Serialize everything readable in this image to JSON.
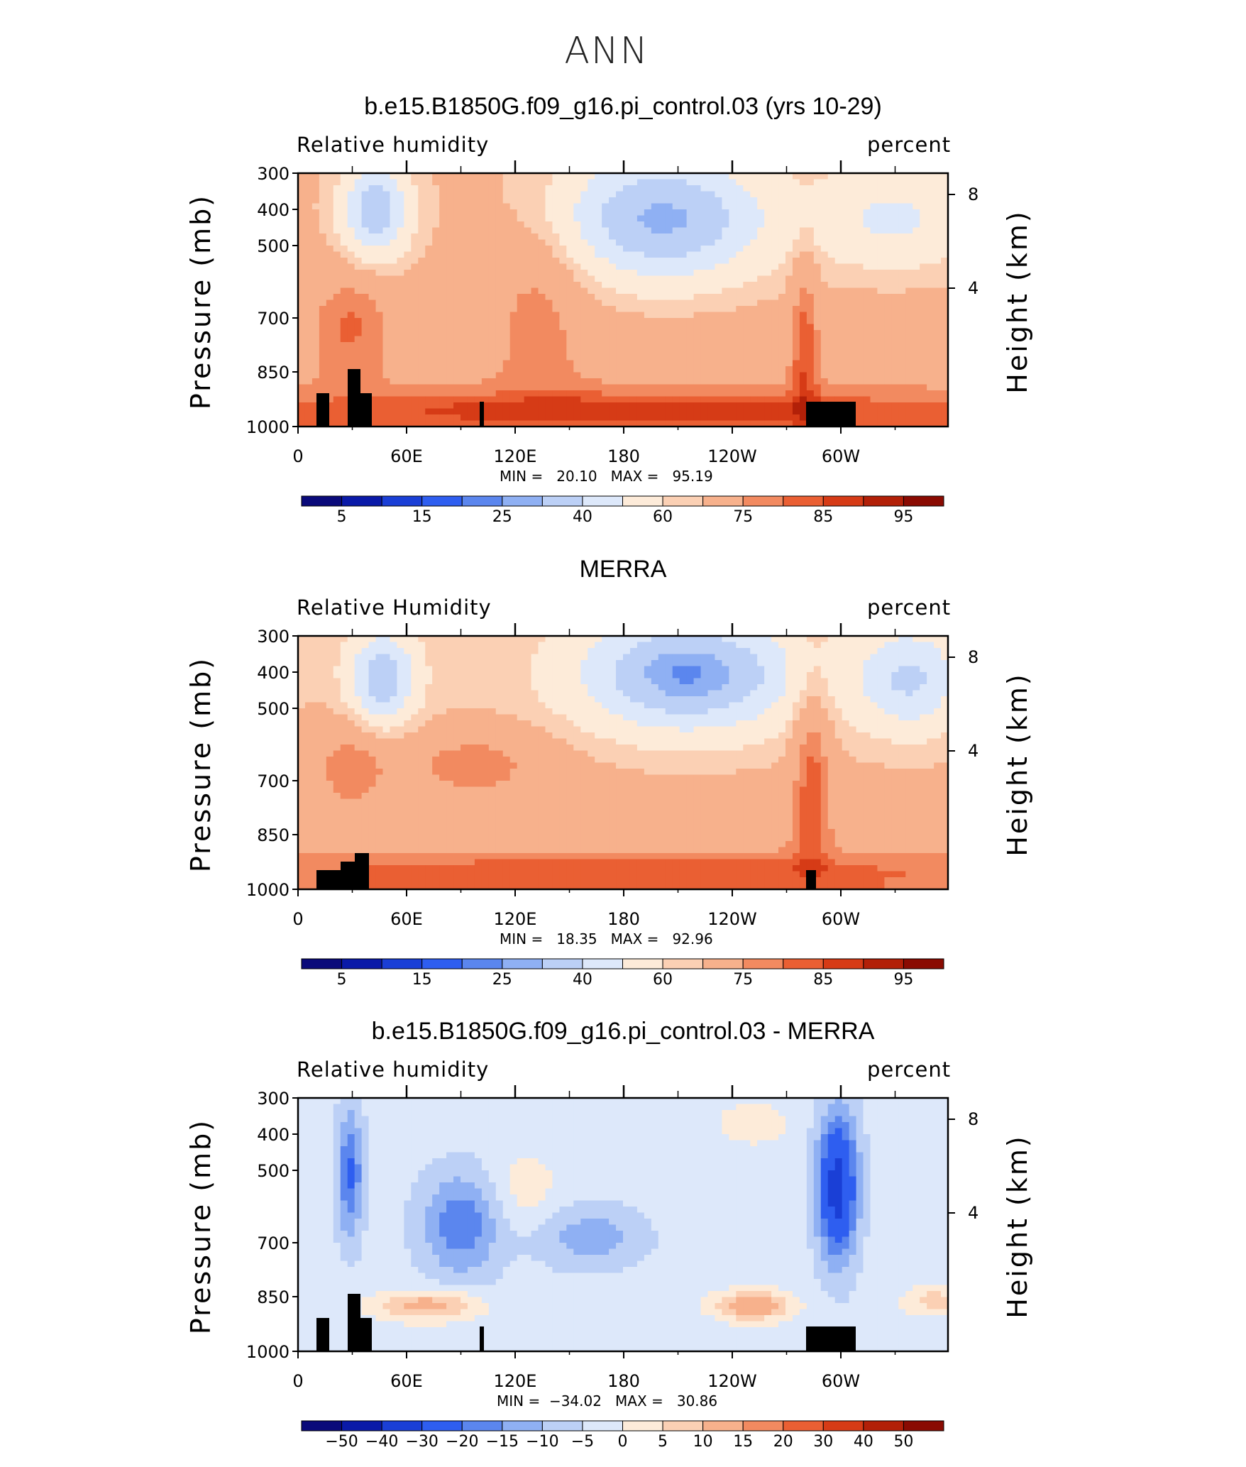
{
  "figure": {
    "title": "ANN"
  },
  "chart_data": [
    {
      "type": "heatmap",
      "title": "b.e15.B1850G.f09_g16.pi_control.03 (yrs 10-29)",
      "left_label": "Relative humidity",
      "right_label": "percent",
      "ylabel": "Pressure (mb)",
      "ylabel_right": "Height (km)",
      "x_ticks": [
        "0",
        "60E",
        "120E",
        "180",
        "120W",
        "60W"
      ],
      "y_ticks": [
        "300",
        "400",
        "500",
        "700",
        "850",
        "1000"
      ],
      "y_ticks_right": [
        "8",
        "4"
      ],
      "min_max_text": "MIN =   20.10   MAX =   95.19",
      "min": 20.1,
      "max": 95.19,
      "colorbar_labels": [
        "5",
        "15",
        "25",
        "40",
        "60",
        "75",
        "85",
        "95"
      ],
      "colors": [
        "#0a0a7a",
        "#0a1aa8",
        "#1a3fd6",
        "#2e5ef0",
        "#5b86ee",
        "#8fb0f3",
        "#bcd0f6",
        "#dde8fa",
        "#fdebd9",
        "#fbd0b4",
        "#f7b18c",
        "#f28a60",
        "#ea5f33",
        "#d63b16",
        "#b22008",
        "#8a0b02"
      ]
    },
    {
      "type": "heatmap",
      "title": "MERRA",
      "left_label": "Relative Humidity",
      "right_label": "percent",
      "ylabel": "Pressure (mb)",
      "ylabel_right": "Height (km)",
      "x_ticks": [
        "0",
        "60E",
        "120E",
        "180",
        "120W",
        "60W"
      ],
      "y_ticks": [
        "300",
        "400",
        "500",
        "700",
        "850",
        "1000"
      ],
      "y_ticks_right": [
        "8",
        "4"
      ],
      "min_max_text": "MIN =   18.35   MAX =   92.96",
      "min": 18.35,
      "max": 92.96,
      "colorbar_labels": [
        "5",
        "15",
        "25",
        "40",
        "60",
        "75",
        "85",
        "95"
      ],
      "colors": [
        "#0a0a7a",
        "#0a1aa8",
        "#1a3fd6",
        "#2e5ef0",
        "#5b86ee",
        "#8fb0f3",
        "#bcd0f6",
        "#dde8fa",
        "#fdebd9",
        "#fbd0b4",
        "#f7b18c",
        "#f28a60",
        "#ea5f33",
        "#d63b16",
        "#b22008",
        "#8a0b02"
      ]
    },
    {
      "type": "heatmap",
      "title": "b.e15.B1850G.f09_g16.pi_control.03 - MERRA",
      "left_label": "Relative humidity",
      "right_label": "percent",
      "ylabel": "Pressure (mb)",
      "ylabel_right": "Height (km)",
      "x_ticks": [
        "0",
        "60E",
        "120E",
        "180",
        "120W",
        "60W"
      ],
      "y_ticks": [
        "300",
        "400",
        "500",
        "700",
        "850",
        "1000"
      ],
      "y_ticks_right": [
        "8",
        "4"
      ],
      "min_max_text": "MIN =  −34.02   MAX =   30.86",
      "min": -34.02,
      "max": 30.86,
      "colorbar_labels": [
        "−50",
        "−40",
        "−30",
        "−20",
        "−15",
        "−10",
        "−5",
        "0",
        "5",
        "10",
        "15",
        "20",
        "30",
        "40",
        "50"
      ],
      "colors": [
        "#0a0a7a",
        "#0a1aa8",
        "#1a3fd6",
        "#2e5ef0",
        "#5b86ee",
        "#8fb0f3",
        "#bcd0f6",
        "#dde8fa",
        "#fdebd9",
        "#fbd0b4",
        "#f7b18c",
        "#f28a60",
        "#ea5f33",
        "#d63b16",
        "#b22008",
        "#8a0b02"
      ]
    }
  ]
}
